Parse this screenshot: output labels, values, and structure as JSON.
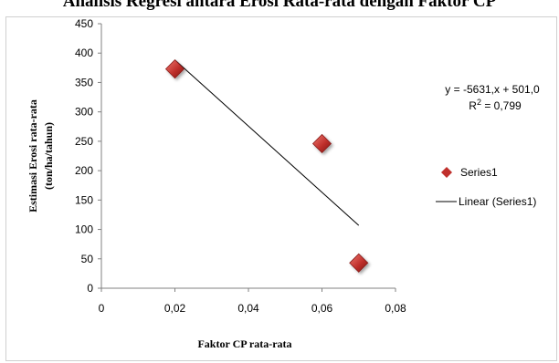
{
  "chart_data": {
    "type": "scatter",
    "title": "Analisis Regresi antara Erosi Rata-rata dengan Faktor CP",
    "xlabel": "Faktor CP rata-rata",
    "ylabel_lines": [
      "Estimasi Erosi rata-rata",
      "(ton/ha/tahun)"
    ],
    "xlim": [
      0,
      0.08
    ],
    "ylim": [
      0,
      450
    ],
    "x_ticks": [
      0,
      0.02,
      0.04,
      0.06,
      0.08
    ],
    "x_tick_labels": [
      "0",
      "0,02",
      "0,04",
      "0,06",
      "0,08"
    ],
    "y_ticks": [
      0,
      50,
      100,
      150,
      200,
      250,
      300,
      350,
      400,
      450
    ],
    "y_tick_labels": [
      "0",
      "50",
      "100",
      "150",
      "200",
      "250",
      "300",
      "350",
      "400",
      "450"
    ],
    "grid": false,
    "series": [
      {
        "name": "Series1",
        "marker": "diamond",
        "color": "#c0302c",
        "points": [
          {
            "x": 0.02,
            "y": 373
          },
          {
            "x": 0.06,
            "y": 246
          },
          {
            "x": 0.07,
            "y": 43
          }
        ]
      }
    ],
    "trendline": {
      "name": "Linear (Series1)",
      "slope": -5631,
      "intercept": 501.0,
      "x_range": [
        0.02,
        0.07
      ],
      "color": "#000000"
    },
    "annotations": {
      "equation": "y = -5631,x + 501,0",
      "r_squared_prefix": "R",
      "r_squared_sup": "2",
      "r_squared_value": " = 0,799"
    },
    "legend_position": "right"
  }
}
